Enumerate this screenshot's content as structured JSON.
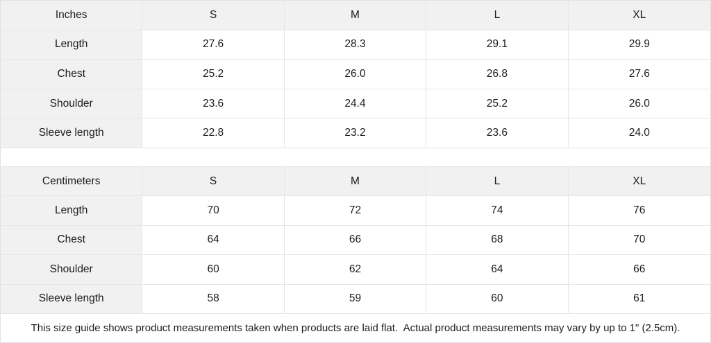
{
  "colors": {
    "header_and_label_bg": "#f1f1f1",
    "grid_border": "#e6e6e6",
    "text": "#1b1b1b",
    "cell_bg": "#ffffff"
  },
  "tables": [
    {
      "unit_label": "Inches",
      "sizes": [
        "S",
        "M",
        "L",
        "XL"
      ],
      "rows": [
        {
          "label": "Length",
          "values": [
            "27.6",
            "28.3",
            "29.1",
            "29.9"
          ]
        },
        {
          "label": "Chest",
          "values": [
            "25.2",
            "26.0",
            "26.8",
            "27.6"
          ]
        },
        {
          "label": "Shoulder",
          "values": [
            "23.6",
            "24.4",
            "25.2",
            "26.0"
          ]
        },
        {
          "label": "Sleeve length",
          "values": [
            "22.8",
            "23.2",
            "23.6",
            "24.0"
          ]
        }
      ]
    },
    {
      "unit_label": "Centimeters",
      "sizes": [
        "S",
        "M",
        "L",
        "XL"
      ],
      "rows": [
        {
          "label": "Length",
          "values": [
            "70",
            "72",
            "74",
            "76"
          ]
        },
        {
          "label": "Chest",
          "values": [
            "64",
            "66",
            "68",
            "70"
          ]
        },
        {
          "label": "Shoulder",
          "values": [
            "60",
            "62",
            "64",
            "66"
          ]
        },
        {
          "label": "Sleeve length",
          "values": [
            "58",
            "59",
            "60",
            "61"
          ]
        }
      ]
    }
  ],
  "footer": {
    "note": "This size guide shows product measurements taken when products are laid flat.  Actual product measurements may vary by up to 1\" (2.5cm)."
  }
}
